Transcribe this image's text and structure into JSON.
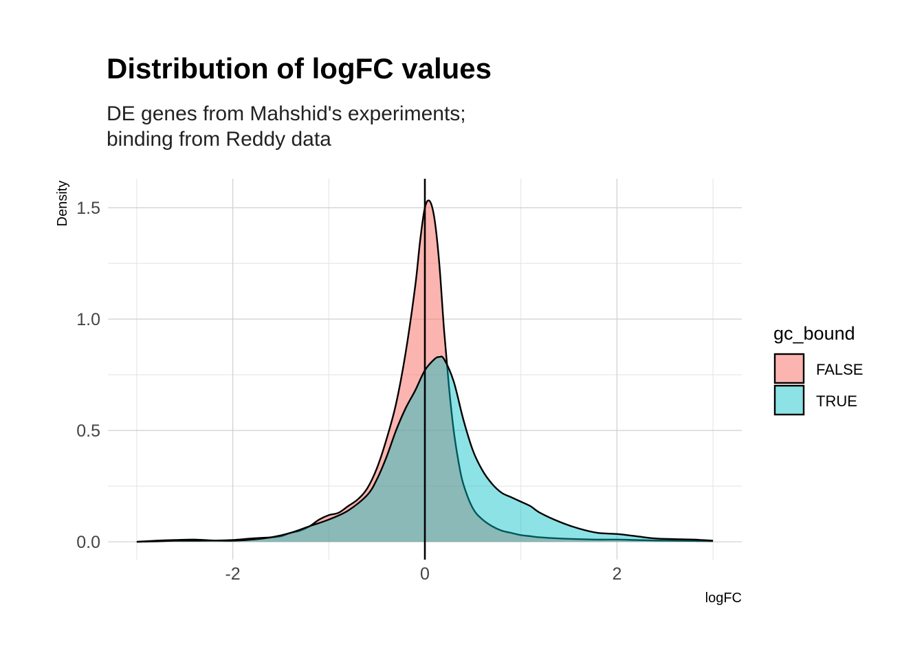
{
  "chart_data": {
    "type": "area",
    "title": "Distribution of logFC values",
    "subtitle_lines": [
      "DE genes from Mahshid's experiments;",
      "binding from Reddy data"
    ],
    "xlabel": "logFC",
    "ylabel": "Density",
    "xlim": [
      -3.3,
      3.3
    ],
    "ylim": [
      -0.08,
      1.63
    ],
    "x_ticks": [
      -2,
      0,
      2
    ],
    "x_tick_labels": [
      "-2",
      "0",
      "2"
    ],
    "y_ticks": [
      0.0,
      0.5,
      1.0,
      1.5
    ],
    "y_tick_labels": [
      "0.0",
      "0.5",
      "1.0",
      "1.5"
    ],
    "vline_x": 0,
    "grid": true,
    "legend": {
      "title": "gc_bound",
      "placement": "right",
      "items": [
        {
          "label": "FALSE",
          "color": "#F8766D"
        },
        {
          "label": "TRUE",
          "color": "#00BFC4"
        }
      ]
    },
    "series": [
      {
        "name": "FALSE",
        "color": "#F8766D",
        "opacity": 0.55,
        "x": [
          -3.0,
          -2.8,
          -2.6,
          -2.4,
          -2.2,
          -2.0,
          -1.8,
          -1.6,
          -1.5,
          -1.4,
          -1.3,
          -1.2,
          -1.1,
          -1.0,
          -0.9,
          -0.8,
          -0.7,
          -0.6,
          -0.5,
          -0.4,
          -0.3,
          -0.2,
          -0.1,
          -0.05,
          0.0,
          0.05,
          0.1,
          0.15,
          0.2,
          0.25,
          0.3,
          0.35,
          0.4,
          0.5,
          0.6,
          0.7,
          0.8,
          0.9,
          1.0,
          1.1,
          1.2,
          1.4,
          1.6,
          1.8,
          2.0,
          2.2,
          2.4,
          2.6,
          2.8,
          3.0
        ],
        "y": [
          0.0,
          0.005,
          0.008,
          0.01,
          0.006,
          0.008,
          0.015,
          0.02,
          0.025,
          0.04,
          0.05,
          0.07,
          0.1,
          0.12,
          0.13,
          0.16,
          0.19,
          0.24,
          0.33,
          0.46,
          0.62,
          0.85,
          1.15,
          1.35,
          1.5,
          1.53,
          1.45,
          1.25,
          0.95,
          0.7,
          0.5,
          0.36,
          0.26,
          0.15,
          0.1,
          0.07,
          0.05,
          0.04,
          0.03,
          0.025,
          0.02,
          0.015,
          0.012,
          0.01,
          0.01,
          0.008,
          0.006,
          0.005,
          0.004,
          0.003
        ]
      },
      {
        "name": "TRUE",
        "color": "#00BFC4",
        "opacity": 0.45,
        "x": [
          -3.0,
          -2.8,
          -2.6,
          -2.4,
          -2.2,
          -2.0,
          -1.8,
          -1.6,
          -1.4,
          -1.2,
          -1.0,
          -0.8,
          -0.6,
          -0.5,
          -0.4,
          -0.3,
          -0.2,
          -0.1,
          0.0,
          0.1,
          0.15,
          0.2,
          0.3,
          0.4,
          0.5,
          0.6,
          0.7,
          0.8,
          0.9,
          1.0,
          1.1,
          1.2,
          1.4,
          1.6,
          1.8,
          2.0,
          2.2,
          2.4,
          2.6,
          2.8,
          3.0
        ],
        "y": [
          0.0,
          0.002,
          0.005,
          0.005,
          0.006,
          0.005,
          0.01,
          0.02,
          0.04,
          0.07,
          0.1,
          0.14,
          0.21,
          0.28,
          0.38,
          0.5,
          0.6,
          0.68,
          0.77,
          0.82,
          0.83,
          0.82,
          0.72,
          0.55,
          0.41,
          0.32,
          0.26,
          0.22,
          0.2,
          0.18,
          0.16,
          0.13,
          0.09,
          0.06,
          0.04,
          0.035,
          0.025,
          0.015,
          0.012,
          0.01,
          0.005
        ]
      }
    ]
  }
}
